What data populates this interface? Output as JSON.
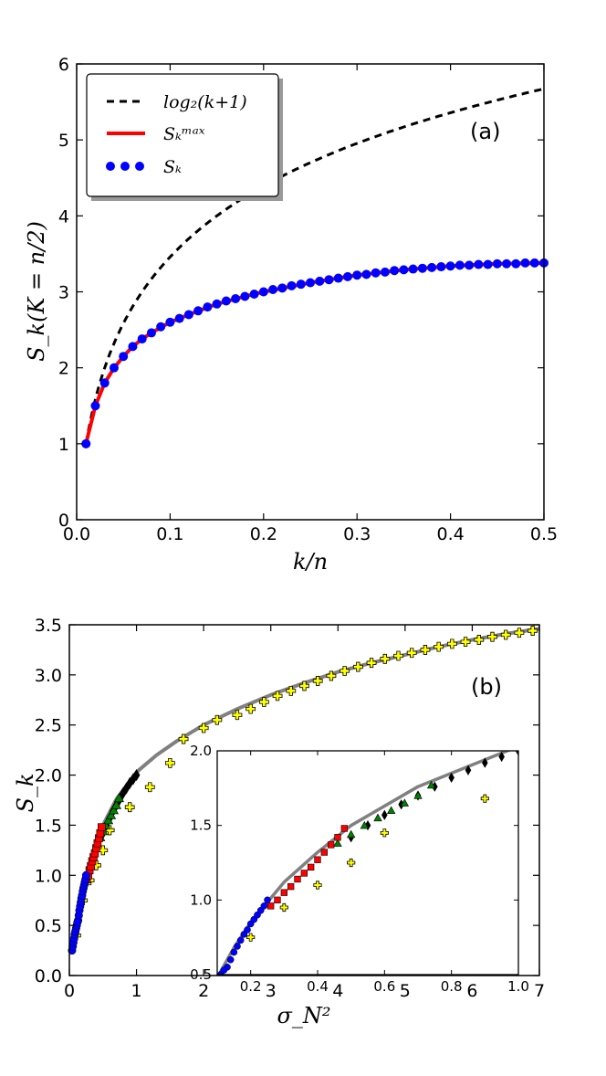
{
  "chart_data": [
    {
      "id": "a",
      "type": "line",
      "panel_label": "(a)",
      "xlabel": "k/n",
      "ylabel": "S_k(K = n/2)",
      "xlim": [
        0.0,
        0.5
      ],
      "ylim": [
        0,
        6
      ],
      "xticks": [
        0.0,
        0.1,
        0.2,
        0.3,
        0.4,
        0.5
      ],
      "xtick_labels": [
        "0.0",
        "0.1",
        "0.2",
        "0.3",
        "0.4",
        "0.5"
      ],
      "yticks": [
        0,
        1,
        2,
        3,
        4,
        5,
        6
      ],
      "ytick_labels": [
        "0",
        "1",
        "2",
        "3",
        "4",
        "5",
        "6"
      ],
      "legend_position": "top-left",
      "legend": [
        {
          "series": "log2",
          "label": "log₂(k+1)"
        },
        {
          "series": "smax",
          "label": "Sₖᵐᵃˣ"
        },
        {
          "series": "sk",
          "label": "Sₖ"
        }
      ],
      "n": 100,
      "series": [
        {
          "name": "log2",
          "label": "log₂(k+1)",
          "style": "dashed",
          "color": "#000000",
          "x": [
            0.01,
            0.02,
            0.03,
            0.05,
            0.07,
            0.1,
            0.13,
            0.16,
            0.2,
            0.25,
            0.3,
            0.35,
            0.4,
            0.45,
            0.5
          ],
          "y": [
            1.0,
            1.58,
            2.0,
            2.58,
            3.0,
            3.46,
            3.81,
            4.09,
            4.39,
            4.7,
            4.95,
            5.17,
            5.36,
            5.52,
            5.67
          ]
        },
        {
          "name": "smax",
          "label": "Sₖᵐᵃˣ",
          "style": "solid",
          "color": "#ff0000",
          "x": [
            0.01,
            0.02,
            0.03,
            0.04,
            0.05,
            0.06,
            0.07,
            0.08,
            0.1,
            0.12,
            0.15,
            0.18,
            0.2,
            0.25,
            0.3,
            0.35,
            0.4,
            0.45,
            0.5
          ],
          "y": [
            1.0,
            1.5,
            1.8,
            2.0,
            2.15,
            2.28,
            2.38,
            2.46,
            2.6,
            2.7,
            2.84,
            2.94,
            3.0,
            3.12,
            3.22,
            3.29,
            3.34,
            3.37,
            3.38
          ]
        },
        {
          "name": "sk",
          "label": "Sₖ",
          "style": "markers",
          "color": "#0000ff",
          "x": [
            0.01,
            0.02,
            0.03,
            0.04,
            0.05,
            0.06,
            0.07,
            0.08,
            0.09,
            0.1,
            0.11,
            0.12,
            0.13,
            0.14,
            0.15,
            0.16,
            0.17,
            0.18,
            0.19,
            0.2,
            0.21,
            0.22,
            0.23,
            0.24,
            0.25,
            0.26,
            0.27,
            0.28,
            0.29,
            0.3,
            0.31,
            0.32,
            0.33,
            0.34,
            0.35,
            0.36,
            0.37,
            0.38,
            0.39,
            0.4,
            0.41,
            0.42,
            0.43,
            0.44,
            0.45,
            0.46,
            0.47,
            0.48,
            0.49,
            0.5
          ],
          "y": [
            1.0,
            1.5,
            1.8,
            2.0,
            2.15,
            2.28,
            2.38,
            2.46,
            2.54,
            2.6,
            2.65,
            2.7,
            2.75,
            2.8,
            2.84,
            2.88,
            2.91,
            2.94,
            2.97,
            3.0,
            3.03,
            3.05,
            3.08,
            3.1,
            3.12,
            3.14,
            3.16,
            3.18,
            3.2,
            3.22,
            3.23,
            3.25,
            3.26,
            3.28,
            3.29,
            3.3,
            3.31,
            3.32,
            3.33,
            3.34,
            3.35,
            3.35,
            3.36,
            3.36,
            3.37,
            3.37,
            3.37,
            3.38,
            3.38,
            3.38
          ]
        }
      ]
    },
    {
      "id": "b",
      "type": "scatter",
      "panel_label": "(b)",
      "xlabel": "σ_N²",
      "ylabel": "S_k",
      "xlim": [
        0,
        7
      ],
      "ylim": [
        0.0,
        3.5
      ],
      "xticks": [
        0,
        1,
        2,
        3,
        4,
        5,
        6,
        7
      ],
      "xtick_labels": [
        "0",
        "1",
        "2",
        "3",
        "4",
        "5",
        "6",
        "7"
      ],
      "yticks": [
        0.0,
        0.5,
        1.0,
        1.5,
        2.0,
        2.5,
        3.0,
        3.5
      ],
      "ytick_labels": [
        "0.0",
        "0.5",
        "1.0",
        "1.5",
        "2.0",
        "2.5",
        "3.0",
        "3.5"
      ],
      "envelope": {
        "color": "#808080",
        "x": [
          0.06,
          0.1,
          0.15,
          0.2,
          0.3,
          0.4,
          0.5,
          0.7,
          1.0,
          1.3,
          1.6,
          2.0,
          2.5,
          3.0,
          3.5,
          4.0,
          4.5,
          5.0,
          5.5,
          6.0,
          6.5,
          7.0
        ],
        "y": [
          0.3,
          0.48,
          0.68,
          0.85,
          1.12,
          1.32,
          1.5,
          1.76,
          2.03,
          2.2,
          2.34,
          2.5,
          2.66,
          2.8,
          2.92,
          3.03,
          3.12,
          3.2,
          3.28,
          3.35,
          3.41,
          3.46
        ]
      },
      "series": [
        {
          "name": "N2",
          "marker": "plus",
          "color": "#ffff00",
          "x": [
            0.1,
            0.2,
            0.3,
            0.4,
            0.5,
            0.6,
            0.9,
            1.2,
            1.5,
            1.7,
            2.0,
            2.2,
            2.5,
            2.7,
            2.9,
            3.1,
            3.3,
            3.5,
            3.7,
            3.9,
            4.1,
            4.3,
            4.5,
            4.7,
            4.9,
            5.1,
            5.3,
            5.5,
            5.7,
            5.9,
            6.1,
            6.3,
            6.5,
            6.7,
            6.9
          ],
          "y": [
            0.4,
            0.75,
            0.95,
            1.1,
            1.25,
            1.45,
            1.68,
            1.88,
            2.12,
            2.36,
            2.47,
            2.55,
            2.6,
            2.66,
            2.73,
            2.79,
            2.84,
            2.89,
            2.94,
            2.99,
            3.04,
            3.08,
            3.12,
            3.16,
            3.19,
            3.22,
            3.25,
            3.28,
            3.31,
            3.33,
            3.35,
            3.38,
            3.4,
            3.42,
            3.44
          ]
        },
        {
          "name": "N3",
          "marker": "diamond",
          "color": "#000000",
          "x": [
            0.5,
            0.55,
            0.6,
            0.65,
            0.7,
            0.75,
            0.8,
            0.85,
            0.9,
            0.95,
            1.0
          ],
          "y": [
            1.42,
            1.5,
            1.57,
            1.64,
            1.7,
            1.76,
            1.82,
            1.87,
            1.92,
            1.96,
            2.0
          ]
        },
        {
          "name": "N4",
          "marker": "triangle",
          "color": "#008000",
          "x": [
            0.46,
            0.5,
            0.54,
            0.58,
            0.62,
            0.66,
            0.7,
            0.74
          ],
          "y": [
            1.38,
            1.44,
            1.5,
            1.55,
            1.6,
            1.65,
            1.7,
            1.77
          ]
        },
        {
          "name": "N5",
          "marker": "square",
          "color": "#ff0000",
          "x": [
            0.26,
            0.28,
            0.3,
            0.32,
            0.34,
            0.36,
            0.38,
            0.4,
            0.42,
            0.44,
            0.46,
            0.48
          ],
          "y": [
            0.96,
            1.0,
            1.05,
            1.09,
            1.14,
            1.18,
            1.22,
            1.27,
            1.32,
            1.37,
            1.42,
            1.48
          ]
        },
        {
          "name": "N6",
          "marker": "circle",
          "color": "#0000ff",
          "x": [
            0.13,
            0.14,
            0.15,
            0.16,
            0.17,
            0.18,
            0.19,
            0.2,
            0.21,
            0.22,
            0.23,
            0.24,
            0.25
          ],
          "y": [
            0.55,
            0.6,
            0.65,
            0.69,
            0.73,
            0.77,
            0.8,
            0.84,
            0.87,
            0.9,
            0.93,
            0.96,
            1.0
          ]
        },
        {
          "name": "N7",
          "marker": "circle",
          "color": "#0000ff",
          "x": [
            0.04,
            0.05,
            0.06,
            0.07,
            0.08,
            0.09,
            0.1,
            0.11,
            0.12
          ],
          "y": [
            0.25,
            0.29,
            0.33,
            0.37,
            0.41,
            0.44,
            0.47,
            0.5,
            0.53
          ]
        }
      ],
      "inset": {
        "xlim": [
          0.1,
          1.0
        ],
        "ylim": [
          0.5,
          2.0
        ],
        "xticks": [
          0.2,
          0.4,
          0.6,
          0.8,
          1.0
        ],
        "xtick_labels": [
          "0.2",
          "0.4",
          "0.6",
          "0.8",
          "1.0"
        ],
        "yticks": [
          0.5,
          1.0,
          1.5,
          2.0
        ],
        "ytick_labels": [
          "0.5",
          "1.0",
          "1.5",
          "2.0"
        ]
      }
    }
  ]
}
